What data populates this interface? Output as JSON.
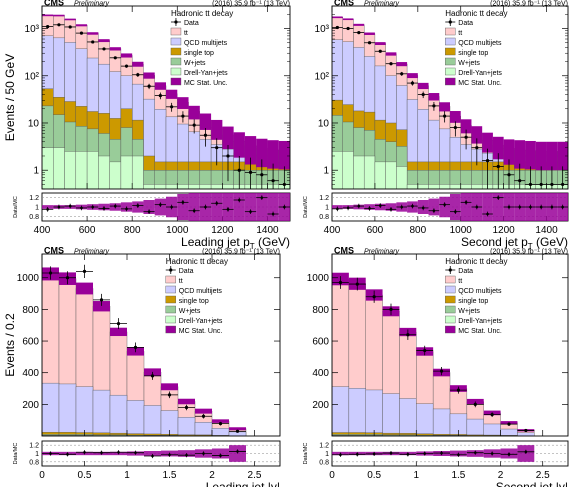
{
  "figure": {
    "legend_labels": {
      "header": "Hadronic tt decay",
      "data": "Data",
      "tt": "tt",
      "qcd": "QCD multijets",
      "stop": "single top",
      "wjets": "W+jets",
      "dy": "Drell-Yan+jets",
      "unc": "MC Stat. Unc."
    },
    "colors": {
      "tt": "#ffcccc",
      "qcd": "#ccccff",
      "stop": "#cc9900",
      "wjets": "#99cc99",
      "dy": "#ccffcc",
      "unc": "#990099",
      "data": "#000000"
    }
  },
  "chart_data": [
    {
      "type": "bar",
      "log": true,
      "cms": "CMS",
      "prelim": "Preliminary",
      "lumi": "(2016) 35.9 fb⁻¹ (13 TeV)",
      "ylabel": "Events / 50 GeV",
      "xlabel": "Leading jet p",
      "xlabel_sub": "T",
      "xlabel_unit": " (GeV)",
      "ratio_label": "Data/MC",
      "xlim": [
        400,
        1500
      ],
      "ylim": [
        0.4,
        3000
      ],
      "yticks": [
        1,
        10,
        100,
        1000
      ],
      "ytick_labels": [
        "1",
        "10",
        "10²",
        "10³"
      ],
      "xticks": [
        400,
        600,
        800,
        1000,
        1200,
        1400
      ],
      "ratio_ylim": [
        0.7,
        1.3
      ],
      "ratio_ticks": [
        0.8,
        1,
        1.2
      ],
      "ratio_tick_labels": [
        "0.8",
        "1",
        "1.2"
      ],
      "bin_edges": [
        400,
        450,
        500,
        550,
        600,
        650,
        700,
        750,
        800,
        850,
        900,
        950,
        1000,
        1050,
        1100,
        1150,
        1200,
        1250,
        1300,
        1350,
        1400,
        1450,
        1500
      ],
      "series": [
        {
          "key": "dy",
          "values": [
            3,
            3,
            2.5,
            2.5,
            2.5,
            2,
            1.5,
            2,
            2,
            0.5,
            0.5,
            0.5,
            0.5,
            0.5,
            0.5,
            0.5,
            0.5,
            0.5,
            0.5,
            0.5,
            0.5,
            0.5
          ]
        },
        {
          "key": "wjets",
          "values": [
            20,
            12,
            8,
            6,
            5,
            4,
            3,
            6,
            2.5,
            0.5,
            0.5,
            0.5,
            0.5,
            0.5,
            0.5,
            0.5,
            0.5,
            0.5,
            0.5,
            0.5,
            0.5,
            0.5
          ]
        },
        {
          "key": "stop",
          "values": [
            30,
            20,
            18,
            14,
            10,
            10,
            8,
            12,
            7,
            1,
            0.5,
            0.5,
            0.5,
            0.5,
            0.5,
            0.5,
            0.5,
            0.5,
            0.5,
            0.5,
            0.5,
            0.5
          ]
        },
        {
          "key": "qcd",
          "values": [
            650,
            600,
            480,
            350,
            220,
            160,
            110,
            80,
            55,
            30,
            18,
            12,
            8,
            5,
            3,
            2,
            1.3,
            0.8,
            0.6,
            0.5,
            0.5,
            0.5
          ]
        },
        {
          "key": "tt",
          "values": [
            1200,
            1250,
            1050,
            800,
            550,
            380,
            250,
            170,
            110,
            70,
            42,
            28,
            18,
            11,
            7,
            4.5,
            2.8,
            1.8,
            1.2,
            0.9,
            0.7,
            0.6
          ]
        }
      ],
      "data_points": [
        1100,
        1200,
        1080,
        800,
        520,
        370,
        240,
        160,
        105,
        60,
        38,
        22,
        14,
        9,
        5.5,
        3,
        2,
        1,
        0.9,
        0.8,
        0.6,
        0.5
      ],
      "unc_rel": [
        0.04,
        0.04,
        0.04,
        0.05,
        0.06,
        0.07,
        0.08,
        0.1,
        0.12,
        0.15,
        0.18,
        0.22,
        0.28,
        0.32,
        0.38,
        0.45,
        0.5,
        0.55,
        0.6,
        0.6,
        0.6,
        0.6
      ],
      "ratio_points": [
        0.95,
        1,
        1.02,
        0.98,
        1,
        0.97,
        1.02,
        0.96,
        1.03,
        0.9,
        1.05,
        1,
        1.1,
        0.92,
        1,
        1.08,
        0.95,
        1.15,
        0.9,
        1.2,
        0.85,
        1
      ]
    },
    {
      "type": "bar",
      "log": true,
      "cms": "CMS",
      "prelim": "Preliminary",
      "lumi": "(2016) 35.9 fb⁻¹ (13 TeV)",
      "ylabel": "",
      "xlabel": "Second jet p",
      "xlabel_sub": "T",
      "xlabel_unit": " (GeV)",
      "ratio_label": "Data/MC",
      "xlim": [
        400,
        1500
      ],
      "ylim": [
        0.4,
        3000
      ],
      "yticks": [
        1,
        10,
        100,
        1000
      ],
      "ytick_labels": [
        "1",
        "10",
        "10²",
        "10³"
      ],
      "xticks": [
        400,
        600,
        800,
        1000,
        1200,
        1400
      ],
      "ratio_ylim": [
        0.7,
        1.3
      ],
      "ratio_ticks": [
        0.8,
        1,
        1.2
      ],
      "ratio_tick_labels": [
        "0.8",
        "1",
        "1.2"
      ],
      "bin_edges": [
        400,
        450,
        500,
        550,
        600,
        650,
        700,
        750,
        800,
        850,
        900,
        950,
        1000,
        1050,
        1100,
        1150,
        1200,
        1250,
        1300,
        1350,
        1400,
        1450,
        1500
      ],
      "series": [
        {
          "key": "dy",
          "values": [
            2.5,
            2.5,
            2,
            2,
            1.5,
            1.5,
            1.2,
            0.5,
            0.5,
            0.5,
            0.5,
            0.5,
            0.5,
            0.5,
            0.5,
            0.5,
            0.5,
            0.5,
            0.5,
            0.5,
            0.5,
            0.5
          ]
        },
        {
          "key": "wjets",
          "values": [
            12,
            8,
            6,
            5,
            3,
            2.5,
            2,
            0.5,
            0.5,
            0.5,
            0.5,
            0.5,
            0.5,
            0.5,
            0.5,
            0.5,
            0.5,
            0.5,
            0.5,
            0.5,
            0.5,
            0.5
          ]
        },
        {
          "key": "stop",
          "values": [
            16,
            14,
            10,
            10,
            7,
            6,
            4,
            0.5,
            0.5,
            0.5,
            0.5,
            0.5,
            0.5,
            0.5,
            0.5,
            0.5,
            0.5,
            0.5,
            0.5,
            0.5,
            0.5,
            0.5
          ]
        },
        {
          "key": "qcd",
          "values": [
            550,
            500,
            380,
            240,
            150,
            90,
            55,
            30,
            18,
            10,
            6,
            3.5,
            2,
            1.3,
            0.8,
            0.6,
            0.5,
            0.5,
            0.5,
            0.5,
            0.5,
            0.5
          ]
        },
        {
          "key": "tt",
          "values": [
            1150,
            1050,
            800,
            520,
            320,
            190,
            115,
            70,
            42,
            25,
            15,
            9,
            5.5,
            3.3,
            2,
            1.3,
            0.9,
            0.7,
            0.6,
            0.5,
            0.5,
            0.5
          ]
        }
      ],
      "data_points": [
        1050,
        1000,
        820,
        500,
        330,
        180,
        110,
        70,
        40,
        23,
        14,
        8,
        5,
        3,
        1.6,
        1.2,
        0.8,
        0.6,
        0.5,
        0.5,
        0.5,
        0.5
      ],
      "unc_rel": [
        0.04,
        0.04,
        0.05,
        0.06,
        0.07,
        0.08,
        0.1,
        0.12,
        0.15,
        0.18,
        0.22,
        0.28,
        0.33,
        0.4,
        0.45,
        0.5,
        0.55,
        0.6,
        0.6,
        0.6,
        0.6,
        0.6
      ],
      "ratio_points": [
        0.96,
        0.98,
        1.02,
        0.97,
        1.03,
        0.95,
        1,
        1.02,
        0.98,
        0.92,
        1.05,
        0.9,
        1.1,
        1,
        0.85,
        1.2,
        1,
        1,
        1,
        1,
        1,
        1
      ]
    },
    {
      "type": "bar",
      "log": false,
      "cms": "CMS",
      "prelim": "Preliminary",
      "lumi": "(2016) 35.9 fb⁻¹ (13 TeV)",
      "ylabel": "Events / 0.2",
      "xlabel": "Leading jet |y|",
      "xlabel_sub": "",
      "xlabel_unit": "",
      "ratio_label": "Data/MC",
      "xlim": [
        0,
        2.8
      ],
      "ylim": [
        0,
        1150
      ],
      "yticks": [
        200,
        400,
        600,
        800,
        1000
      ],
      "ytick_labels": [
        "200",
        "400",
        "600",
        "800",
        "1000"
      ],
      "xticks": [
        0,
        0.5,
        1,
        1.5,
        2,
        2.5
      ],
      "ratio_ylim": [
        0.7,
        1.3
      ],
      "ratio_ticks": [
        0.8,
        1,
        1.2
      ],
      "ratio_tick_labels": [
        "0.8",
        "1",
        "1.2"
      ],
      "bin_edges": [
        0,
        0.2,
        0.4,
        0.6,
        0.8,
        1,
        1.2,
        1.4,
        1.6,
        1.8,
        2,
        2.2,
        2.4
      ],
      "series": [
        {
          "key": "dy",
          "values": [
            4,
            4,
            4,
            3,
            3,
            2,
            2,
            2,
            1,
            1,
            1,
            0
          ]
        },
        {
          "key": "wjets",
          "values": [
            6,
            6,
            6,
            5,
            5,
            4,
            3,
            3,
            2,
            2,
            1,
            0
          ]
        },
        {
          "key": "stop",
          "values": [
            14,
            14,
            12,
            12,
            10,
            9,
            8,
            6,
            5,
            4,
            2,
            1
          ]
        },
        {
          "key": "qcd",
          "values": [
            310,
            305,
            290,
            270,
            240,
            210,
            180,
            150,
            110,
            80,
            45,
            25
          ]
        },
        {
          "key": "tt",
          "values": [
            690,
            665,
            620,
            530,
            400,
            310,
            210,
            150,
            100,
            70,
            45,
            20
          ]
        }
      ],
      "data_points": [
        1030,
        1000,
        1040,
        860,
        710,
        560,
        380,
        260,
        180,
        125,
        78,
        30
      ],
      "unc_rel": [
        0.04,
        0.04,
        0.04,
        0.04,
        0.04,
        0.05,
        0.06,
        0.07,
        0.08,
        0.1,
        0.12,
        0.2
      ],
      "ratio_points": [
        1,
        0.98,
        1.03,
        1.02,
        1.03,
        1.02,
        0.94,
        0.97,
        0.96,
        1,
        0.95,
        1.05
      ]
    },
    {
      "type": "bar",
      "log": false,
      "cms": "CMS",
      "prelim": "Preliminary",
      "lumi": "(2016) 35.9 fb⁻¹ (13 TeV)",
      "ylabel": "",
      "xlabel": "Second jet |y|",
      "xlabel_sub": "",
      "xlabel_unit": "",
      "ratio_label": "Data/MC",
      "xlim": [
        0,
        2.8
      ],
      "ylim": [
        0,
        1150
      ],
      "yticks": [
        200,
        400,
        600,
        800,
        1000
      ],
      "ytick_labels": [
        "200",
        "400",
        "600",
        "800",
        "1000"
      ],
      "xticks": [
        0,
        0.5,
        1,
        1.5,
        2,
        2.5
      ],
      "ratio_ylim": [
        0.7,
        1.3
      ],
      "ratio_ticks": [
        0.8,
        1,
        1.2
      ],
      "ratio_tick_labels": [
        "0.8",
        "1",
        "1.2"
      ],
      "bin_edges": [
        0,
        0.2,
        0.4,
        0.6,
        0.8,
        1,
        1.2,
        1.4,
        1.6,
        1.8,
        2,
        2.2,
        2.4
      ],
      "series": [
        {
          "key": "dy",
          "values": [
            4,
            4,
            4,
            3,
            3,
            2,
            2,
            2,
            1,
            1,
            1,
            0
          ]
        },
        {
          "key": "wjets",
          "values": [
            6,
            6,
            6,
            5,
            5,
            4,
            3,
            3,
            2,
            2,
            1,
            0
          ]
        },
        {
          "key": "stop",
          "values": [
            12,
            12,
            11,
            10,
            9,
            8,
            6,
            5,
            4,
            3,
            2,
            1
          ]
        },
        {
          "key": "qcd",
          "values": [
            290,
            280,
            270,
            250,
            220,
            190,
            160,
            130,
            100,
            70,
            40,
            20
          ]
        },
        {
          "key": "tt",
          "values": [
            680,
            660,
            600,
            520,
            420,
            330,
            230,
            160,
            110,
            70,
            40,
            15
          ]
        }
      ],
      "data_points": [
        970,
        960,
        880,
        800,
        640,
        540,
        410,
        290,
        200,
        135,
        75,
        35
      ],
      "unc_rel": [
        0.04,
        0.04,
        0.04,
        0.04,
        0.04,
        0.05,
        0.06,
        0.07,
        0.08,
        0.1,
        0.12,
        0.2
      ],
      "ratio_points": [
        0.97,
        0.98,
        0.99,
        1.01,
        0.98,
        1,
        1.01,
        0.97,
        1.02,
        1,
        0.98,
        1.04
      ]
    }
  ]
}
